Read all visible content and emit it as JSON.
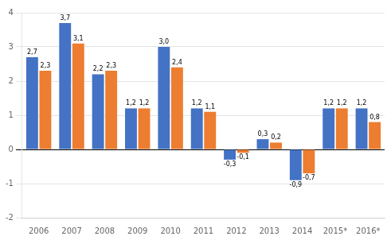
{
  "chart_data": {
    "type": "bar",
    "categories": [
      "2006",
      "2007",
      "2008",
      "2009",
      "2010",
      "2011",
      "2012",
      "2013",
      "2014",
      "2015*",
      "2016*"
    ],
    "series": [
      {
        "color": "#4472C4",
        "values": [
          2.7,
          3.7,
          2.2,
          1.2,
          3.0,
          1.2,
          -0.3,
          0.3,
          -0.9,
          1.2,
          1.2
        ],
        "value_labels": [
          "2,7",
          "3,7",
          "2,2",
          "1,2",
          "3,0",
          "1,2",
          "-0,3",
          "0,3",
          "-0,9",
          "1,2",
          "1,2"
        ]
      },
      {
        "color": "#ED7D31",
        "values": [
          2.3,
          3.1,
          2.3,
          1.2,
          2.4,
          1.1,
          -0.1,
          0.2,
          -0.7,
          1.2,
          0.8
        ],
        "value_labels": [
          "2,3",
          "3,1",
          "2,3",
          "1,2",
          "2,4",
          "1,1",
          "-0,1",
          "0,2",
          "-0,7",
          "1,2",
          "0,8"
        ]
      }
    ],
    "ylim": [
      -2,
      4
    ],
    "yticks": [
      -2,
      -1,
      0,
      1,
      2,
      3,
      4
    ],
    "grid": true,
    "data_labels": true
  }
}
